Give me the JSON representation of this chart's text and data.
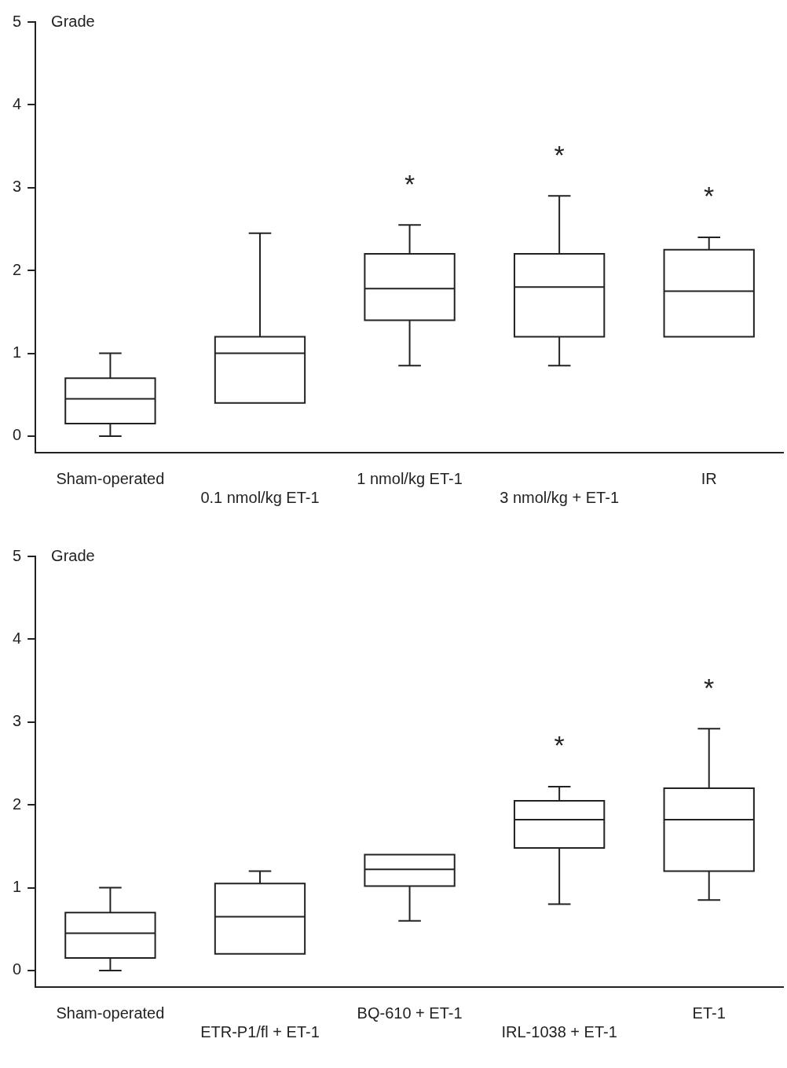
{
  "chart_data": [
    {
      "type": "box",
      "ylabel": "Grade",
      "categories": [
        "Sham-operated",
        "0.1 nmol/kg ET-1",
        "1 nmol/kg ET-1",
        "3 nmol/kg + ET-1",
        "IR"
      ],
      "ylim": [
        -0.2,
        5
      ],
      "yticks": [
        0,
        1,
        2,
        3,
        4,
        5
      ],
      "grid": false,
      "legend": false,
      "boxes": [
        {
          "low": 0,
          "q1": 0.15,
          "median": 0.45,
          "q3": 0.7,
          "high": 1.0
        },
        {
          "low": 0.4,
          "q1": 0.4,
          "median": 1.0,
          "q3": 1.2,
          "high": 2.45
        },
        {
          "low": 0.85,
          "q1": 1.4,
          "median": 1.78,
          "q3": 2.2,
          "high": 2.55
        },
        {
          "low": 0.85,
          "q1": 1.2,
          "median": 1.8,
          "q3": 2.2,
          "high": 2.9
        },
        {
          "low": 1.2,
          "q1": 1.2,
          "median": 1.75,
          "q3": 2.25,
          "high": 2.4
        }
      ],
      "annotations": [
        "*",
        "*",
        "*"
      ]
    },
    {
      "type": "box",
      "ylabel": "Grade",
      "categories": [
        "Sham-operated",
        "ETR-P1/fl + ET-1",
        "BQ-610 + ET-1",
        "IRL-1038 + ET-1",
        "ET-1"
      ],
      "ylim": [
        -0.2,
        5
      ],
      "yticks": [
        0,
        1,
        2,
        3,
        4,
        5
      ],
      "grid": false,
      "legend": false,
      "boxes": [
        {
          "low": 0,
          "q1": 0.15,
          "median": 0.45,
          "q3": 0.7,
          "high": 1.0
        },
        {
          "low": 0.2,
          "q1": 0.2,
          "median": 0.65,
          "q3": 1.05,
          "high": 1.2
        },
        {
          "low": 0.6,
          "q1": 1.02,
          "median": 1.22,
          "q3": 1.4,
          "high": 1.4
        },
        {
          "low": 0.8,
          "q1": 1.48,
          "median": 1.82,
          "q3": 2.05,
          "high": 2.22
        },
        {
          "low": 0.85,
          "q1": 1.2,
          "median": 1.82,
          "q3": 2.2,
          "high": 2.92
        }
      ],
      "annotations": [
        "*",
        "*"
      ]
    }
  ]
}
